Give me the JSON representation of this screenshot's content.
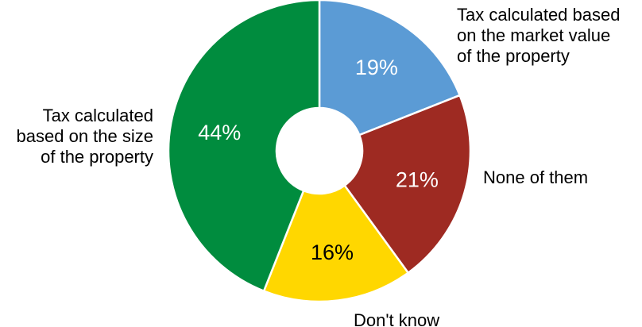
{
  "chart_data": {
    "type": "pie",
    "style": "donut",
    "start_angle_deg": 0,
    "direction": "clockwise",
    "slices": [
      {
        "label": "Tax calculated based on the market value of the property",
        "label_lines": [
          "Tax calculated based",
          "on the market value",
          "of the property"
        ],
        "value": 19,
        "value_label": "19%",
        "color": "#5B9BD5",
        "label_color": "#ffffff"
      },
      {
        "label": "None of them",
        "label_lines": [
          "None of them"
        ],
        "value": 21,
        "value_label": "21%",
        "color": "#9E2A22",
        "label_color": "#ffffff"
      },
      {
        "label": "Don't know",
        "label_lines": [
          "Don't know"
        ],
        "value": 16,
        "value_label": "16%",
        "color": "#FFD700",
        "label_color": "#000000"
      },
      {
        "label": "Tax calculated based on the size of the property",
        "label_lines": [
          "Tax calculated",
          "based on the size",
          "of the property"
        ],
        "value": 44,
        "value_label": "44%",
        "color": "#008C3E",
        "label_color": "#ffffff"
      }
    ]
  }
}
